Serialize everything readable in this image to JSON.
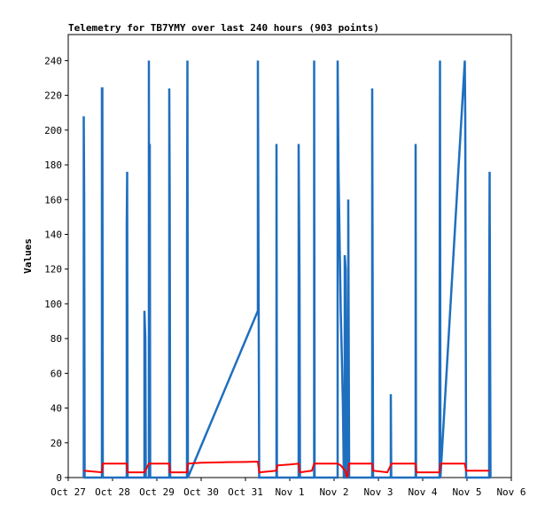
{
  "chart_data": {
    "type": "line",
    "title": "Telemetry for TB7YMY over last 240 hours (903 points)",
    "xlabel": "",
    "ylabel": "Values",
    "ylim": [
      0,
      255
    ],
    "xlim": [
      0,
      10
    ],
    "grid": false,
    "legend": "none",
    "x_ticks": [
      {
        "label": "Oct 27",
        "x": 0
      },
      {
        "label": "Oct 28",
        "x": 1
      },
      {
        "label": "Oct 29",
        "x": 2
      },
      {
        "label": "Oct 30",
        "x": 3
      },
      {
        "label": "Oct 31",
        "x": 4
      },
      {
        "label": "Nov 1",
        "x": 5
      },
      {
        "label": "Nov 2",
        "x": 6
      },
      {
        "label": "Nov 3",
        "x": 7
      },
      {
        "label": "Nov 4",
        "x": 8
      },
      {
        "label": "Nov 5",
        "x": 9
      },
      {
        "label": "Nov 6",
        "x": 10
      }
    ],
    "y_ticks": [
      0,
      20,
      40,
      60,
      80,
      100,
      120,
      140,
      160,
      180,
      200,
      220,
      240
    ],
    "series": [
      {
        "color": "#1f6fbf",
        "points": [
          [
            0.35,
            0
          ],
          [
            0.35,
            208
          ],
          [
            0.36,
            160
          ],
          [
            0.37,
            0
          ],
          [
            0.76,
            0
          ],
          [
            0.76,
            224
          ],
          [
            0.77,
            224
          ],
          [
            0.78,
            0
          ],
          [
            1.32,
            0
          ],
          [
            1.32,
            144
          ],
          [
            1.33,
            176
          ],
          [
            1.34,
            0
          ],
          [
            1.72,
            0
          ],
          [
            1.72,
            96
          ],
          [
            1.74,
            80
          ],
          [
            1.75,
            0
          ],
          [
            1.82,
            0
          ],
          [
            1.82,
            240
          ],
          [
            1.83,
            0
          ],
          [
            1.84,
            192
          ],
          [
            1.85,
            0
          ],
          [
            2.28,
            0
          ],
          [
            2.28,
            224
          ],
          [
            2.29,
            160
          ],
          [
            2.3,
            0
          ],
          [
            2.68,
            0
          ],
          [
            2.68,
            128
          ],
          [
            2.69,
            240
          ],
          [
            2.7,
            0
          ],
          [
            4.28,
            96
          ],
          [
            4.28,
            240
          ],
          [
            4.3,
            80
          ],
          [
            4.31,
            0
          ],
          [
            4.7,
            0
          ],
          [
            4.7,
            192
          ],
          [
            4.71,
            0
          ],
          [
            5.2,
            0
          ],
          [
            5.2,
            192
          ],
          [
            5.22,
            112
          ],
          [
            5.23,
            0
          ],
          [
            5.55,
            0
          ],
          [
            5.55,
            240
          ],
          [
            5.56,
            0
          ],
          [
            6.08,
            0
          ],
          [
            6.08,
            240
          ],
          [
            6.1,
            176
          ],
          [
            6.12,
            144
          ],
          [
            6.15,
            96
          ],
          [
            6.18,
            64
          ],
          [
            6.2,
            40
          ],
          [
            6.22,
            0
          ],
          [
            6.24,
            0
          ],
          [
            6.24,
            128
          ],
          [
            6.26,
            120
          ],
          [
            6.28,
            60
          ],
          [
            6.29,
            0
          ],
          [
            6.32,
            0
          ],
          [
            6.32,
            160
          ],
          [
            6.34,
            0
          ],
          [
            6.86,
            0
          ],
          [
            6.86,
            224
          ],
          [
            6.87,
            112
          ],
          [
            6.88,
            0
          ],
          [
            7.28,
            0
          ],
          [
            7.28,
            48
          ],
          [
            7.29,
            0
          ],
          [
            7.84,
            0
          ],
          [
            7.84,
            192
          ],
          [
            7.85,
            0
          ],
          [
            8.38,
            0
          ],
          [
            8.38,
            64
          ],
          [
            8.39,
            240
          ],
          [
            8.4,
            0
          ],
          [
            8.95,
            240
          ],
          [
            8.96,
            208
          ],
          [
            8.98,
            0
          ],
          [
            9.5,
            0
          ],
          [
            9.5,
            96
          ],
          [
            9.51,
            176
          ],
          [
            9.53,
            0
          ]
        ]
      },
      {
        "color": "#ff0000",
        "points": [
          [
            0.35,
            4
          ],
          [
            0.76,
            3
          ],
          [
            0.78,
            8
          ],
          [
            1.32,
            8
          ],
          [
            1.34,
            3
          ],
          [
            1.72,
            3
          ],
          [
            1.82,
            8
          ],
          [
            2.28,
            8
          ],
          [
            2.3,
            3
          ],
          [
            2.68,
            3
          ],
          [
            2.7,
            8
          ],
          [
            3.0,
            8.5
          ],
          [
            3.5,
            8.8
          ],
          [
            4.0,
            9
          ],
          [
            4.28,
            9.2
          ],
          [
            4.31,
            3
          ],
          [
            4.7,
            4
          ],
          [
            4.72,
            7
          ],
          [
            5.0,
            7.5
          ],
          [
            5.2,
            8
          ],
          [
            5.23,
            3
          ],
          [
            5.5,
            4
          ],
          [
            5.55,
            8
          ],
          [
            6.08,
            8
          ],
          [
            6.15,
            7
          ],
          [
            6.25,
            4
          ],
          [
            6.3,
            0
          ],
          [
            6.34,
            8
          ],
          [
            6.86,
            8
          ],
          [
            6.88,
            4
          ],
          [
            7.2,
            3
          ],
          [
            7.3,
            8
          ],
          [
            7.84,
            8
          ],
          [
            7.86,
            3
          ],
          [
            8.38,
            3
          ],
          [
            8.4,
            8
          ],
          [
            8.95,
            8
          ],
          [
            8.98,
            4
          ],
          [
            9.5,
            4
          ]
        ]
      }
    ]
  }
}
